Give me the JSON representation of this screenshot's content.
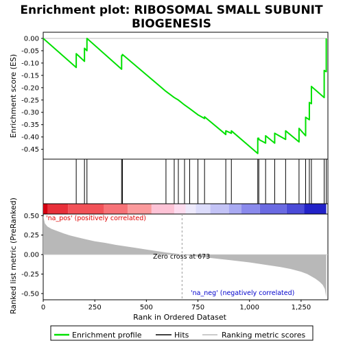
{
  "chart_data": {
    "type": "line",
    "title_line1": "Enrichment plot: RIBOSOMAL SMALL SUBUNIT",
    "title_line2": "BIOGENESIS",
    "es_ylabel": "Enrichment score (ES)",
    "metric_ylabel": "Ranked list metric (PreRanked)",
    "xlabel": "Rank in Ordered Dataset",
    "xlim": [
      0,
      1380
    ],
    "es_ylim": [
      -0.49,
      0.025
    ],
    "metric_ylim": [
      -0.58,
      0.52
    ],
    "x_ticks": [
      0,
      250,
      500,
      750,
      1000,
      1250
    ],
    "x_tick_labels": [
      "0",
      "250",
      "500",
      "750",
      "1,000",
      "1,250"
    ],
    "es_ticks": [
      0.0,
      -0.05,
      -0.1,
      -0.15,
      -0.2,
      -0.25,
      -0.3,
      -0.35,
      -0.4,
      -0.45
    ],
    "es_tick_labels": [
      "0.00",
      "-0.05",
      "-0.10",
      "-0.15",
      "-0.20",
      "-0.25",
      "-0.30",
      "-0.35",
      "-0.40",
      "-0.45"
    ],
    "metric_ticks": [
      0.5,
      0.25,
      0.0,
      -0.25,
      -0.5
    ],
    "metric_tick_labels": [
      "0.50",
      "0.25",
      "0.00",
      "-0.25",
      "-0.50"
    ],
    "hits": [
      0,
      160,
      200,
      212,
      380,
      384,
      595,
      635,
      655,
      685,
      710,
      750,
      782,
      885,
      912,
      1040,
      1045,
      1078,
      1122,
      1175,
      1240,
      1272,
      1290,
      1300,
      1362,
      1372
    ],
    "es_profile": {
      "x": [
        0,
        160,
        160,
        200,
        200,
        212,
        212,
        380,
        380,
        384,
        384,
        595,
        595,
        635,
        635,
        655,
        655,
        685,
        685,
        710,
        710,
        750,
        750,
        782,
        782,
        885,
        885,
        912,
        912,
        1040,
        1040,
        1045,
        1045,
        1078,
        1078,
        1122,
        1122,
        1175,
        1175,
        1240,
        1240,
        1272,
        1272,
        1290,
        1290,
        1300,
        1300,
        1362,
        1362,
        1372,
        1372
      ],
      "y": [
        0.0,
        -0.118,
        -0.062,
        -0.093,
        -0.04,
        -0.05,
        0.0,
        -0.125,
        -0.07,
        -0.07,
        -0.065,
        -0.215,
        -0.215,
        -0.24,
        -0.24,
        -0.25,
        -0.25,
        -0.27,
        -0.27,
        -0.285,
        -0.285,
        -0.31,
        -0.31,
        -0.325,
        -0.318,
        -0.39,
        -0.375,
        -0.385,
        -0.375,
        -0.467,
        -0.405,
        -0.405,
        -0.41,
        -0.425,
        -0.395,
        -0.425,
        -0.385,
        -0.41,
        -0.375,
        -0.42,
        -0.365,
        -0.395,
        -0.32,
        -0.33,
        -0.26,
        -0.265,
        -0.195,
        -0.24,
        -0.13,
        -0.135,
        0.0
      ]
    },
    "metric_curve": {
      "x": [
        0,
        8,
        20,
        40,
        60,
        80,
        100,
        130,
        160,
        200,
        250,
        300,
        350,
        400,
        450,
        500,
        550,
        600,
        650,
        673,
        700,
        750,
        800,
        850,
        900,
        950,
        1000,
        1050,
        1100,
        1150,
        1200,
        1250,
        1280,
        1300,
        1320,
        1340,
        1355,
        1365,
        1372
      ],
      "y": [
        0.5,
        0.4,
        0.36,
        0.33,
        0.31,
        0.29,
        0.27,
        0.245,
        0.225,
        0.2,
        0.17,
        0.15,
        0.125,
        0.105,
        0.085,
        0.065,
        0.045,
        0.025,
        0.01,
        0.0,
        -0.01,
        -0.025,
        -0.04,
        -0.055,
        -0.07,
        -0.085,
        -0.1,
        -0.12,
        -0.14,
        -0.16,
        -0.185,
        -0.22,
        -0.25,
        -0.28,
        -0.31,
        -0.35,
        -0.39,
        -0.44,
        -0.55
      ]
    },
    "zero_cross_rank": 673,
    "zero_cross_label": "Zero cross at 673",
    "pos_label": "'na_pos' (positively correlated)",
    "neg_label": "'na_neg' (negatively correlated)",
    "colorbar_segments": [
      {
        "from": 0,
        "to": 22,
        "color": "#d40010"
      },
      {
        "from": 22,
        "to": 120,
        "color": "#e8303a"
      },
      {
        "from": 120,
        "to": 295,
        "color": "#f25258"
      },
      {
        "from": 295,
        "to": 410,
        "color": "#f77378"
      },
      {
        "from": 410,
        "to": 525,
        "color": "#fb9a9c"
      },
      {
        "from": 525,
        "to": 635,
        "color": "#fdc3d6"
      },
      {
        "from": 635,
        "to": 690,
        "color": "#fddcef"
      },
      {
        "from": 690,
        "to": 740,
        "color": "#eeeafc"
      },
      {
        "from": 740,
        "to": 810,
        "color": "#dcdcfb"
      },
      {
        "from": 810,
        "to": 900,
        "color": "#c3c3f6"
      },
      {
        "from": 900,
        "to": 960,
        "color": "#a9aaf2"
      },
      {
        "from": 960,
        "to": 1050,
        "color": "#8a8aec"
      },
      {
        "from": 1050,
        "to": 1180,
        "color": "#6a6ae2"
      },
      {
        "from": 1180,
        "to": 1265,
        "color": "#4b4bd8"
      },
      {
        "from": 1265,
        "to": 1372,
        "color": "#2222c8"
      }
    ],
    "legend": [
      "Enrichment profile",
      "Hits",
      "Ranking metric scores"
    ],
    "colors": {
      "profile": "#00e000",
      "hits": "#000000",
      "metric_fill": "#b8b8b8",
      "zero_line": "#9a9a9a",
      "pos_text": "#e00000",
      "neg_text": "#0000cc"
    }
  }
}
